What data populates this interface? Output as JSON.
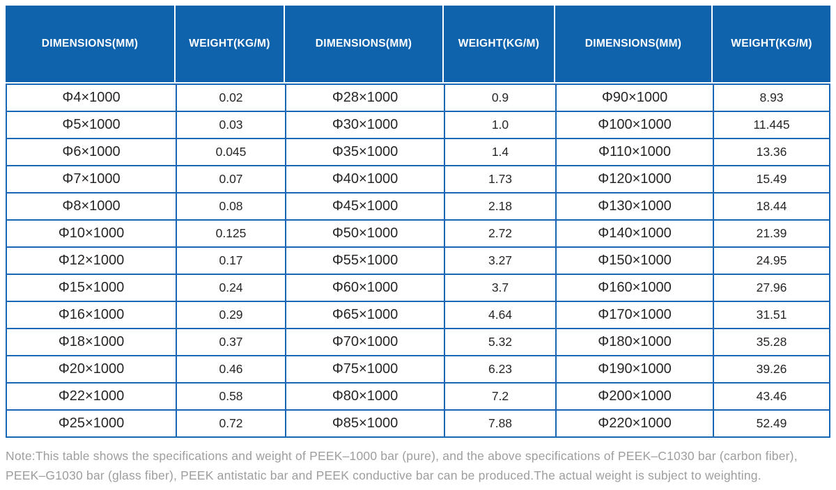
{
  "colors": {
    "header_bg": "#0f63ad",
    "grid": "#1767b4",
    "cell_text": "#262626",
    "note_text": "#9e9e9e"
  },
  "table": {
    "headers": [
      "DIMENSIONS(MM)",
      "WEIGHT(KG/M)",
      "DIMENSIONS(MM)",
      "WEIGHT(KG/M)",
      "DIMENSIONS(MM)",
      "WEIGHT(KG/M)"
    ],
    "rows": [
      [
        "Φ4×1000",
        "0.02",
        "Φ28×1000",
        "0.9",
        "Φ90×1000",
        "8.93"
      ],
      [
        "Φ5×1000",
        "0.03",
        "Φ30×1000",
        "1.0",
        "Φ100×1000",
        "11.445"
      ],
      [
        "Φ6×1000",
        "0.045",
        "Φ35×1000",
        "1.4",
        "Φ110×1000",
        "13.36"
      ],
      [
        "Φ7×1000",
        "0.07",
        "Φ40×1000",
        "1.73",
        "Φ120×1000",
        "15.49"
      ],
      [
        "Φ8×1000",
        "0.08",
        "Φ45×1000",
        "2.18",
        "Φ130×1000",
        "18.44"
      ],
      [
        "Φ10×1000",
        "0.125",
        "Φ50×1000",
        "2.72",
        "Φ140×1000",
        "21.39"
      ],
      [
        "Φ12×1000",
        "0.17",
        "Φ55×1000",
        "3.27",
        "Φ150×1000",
        "24.95"
      ],
      [
        "Φ15×1000",
        "0.24",
        "Φ60×1000",
        "3.7",
        "Φ160×1000",
        "27.96"
      ],
      [
        "Φ16×1000",
        "0.29",
        "Φ65×1000",
        "4.64",
        "Φ170×1000",
        "31.51"
      ],
      [
        "Φ18×1000",
        "0.37",
        "Φ70×1000",
        "5.32",
        "Φ180×1000",
        "35.28"
      ],
      [
        "Φ20×1000",
        "0.46",
        "Φ75×1000",
        "6.23",
        "Φ190×1000",
        "39.26"
      ],
      [
        "Φ22×1000",
        "0.58",
        "Φ80×1000",
        "7.2",
        "Φ200×1000",
        "43.46"
      ],
      [
        "Φ25×1000",
        "0.72",
        "Φ85×1000",
        "7.88",
        "Φ220×1000",
        "52.49"
      ]
    ]
  },
  "note": {
    "lines": [
      "Note:This table shows the specifications and weight of PEEK–1000 bar (pure), and the above specifications of PEEK–C1030 bar (carbon fiber),",
      "PEEK–G1030 bar (glass fiber), PEEK antistatic bar and PEEK conductive bar can be produced.The actual weight is subject to weighting."
    ]
  }
}
